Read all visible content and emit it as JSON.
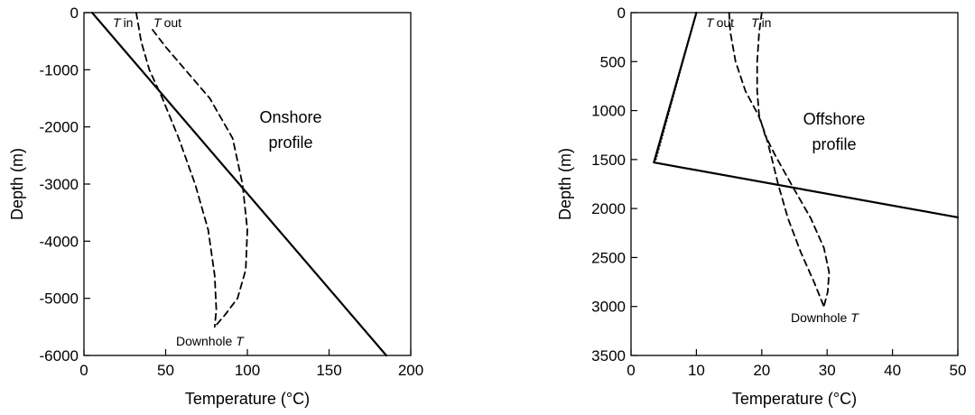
{
  "chart_data": [
    {
      "type": "line",
      "title": "",
      "xlabel": "Temperature (°C)",
      "ylabel": "Depth (m)",
      "xlim": [
        0,
        200
      ],
      "ylim": [
        -6000,
        0
      ],
      "xticks": [
        "0",
        "50",
        "100",
        "150",
        "200"
      ],
      "yticks": [
        "0",
        "-1000",
        "-2000",
        "-3000",
        "-4000",
        "-5000",
        "-6000"
      ],
      "annotations": {
        "profile_line1": "Onshore",
        "profile_line2": "profile",
        "downhole_label": "Downhole",
        "downhole_T": "T",
        "tin_T": "T",
        "tin_label": "in",
        "tout_T": "T",
        "tout_label": "out"
      },
      "series": [
        {
          "style": "solid",
          "x": [
            5,
            185
          ],
          "y": [
            0,
            -6000
          ]
        },
        {
          "style": "dashed",
          "x": [
            32,
            35,
            40,
            48,
            58,
            68,
            76,
            80,
            81,
            80
          ],
          "y": [
            0,
            -500,
            -1000,
            -1500,
            -2200,
            -3000,
            -3800,
            -4600,
            -5200,
            -5500
          ]
        },
        {
          "style": "dashed",
          "x": [
            42,
            50,
            62,
            77,
            91,
            97,
            100,
            99,
            94,
            86,
            80
          ],
          "y": [
            -300,
            -600,
            -1000,
            -1500,
            -2200,
            -3000,
            -3800,
            -4500,
            -5000,
            -5300,
            -5500
          ]
        }
      ]
    },
    {
      "type": "line",
      "title": "",
      "xlabel": "Temperature (°C)",
      "ylabel": "Depth (m)",
      "xlim": [
        0,
        50
      ],
      "ylim": [
        3500,
        0
      ],
      "xticks": [
        "0",
        "10",
        "20",
        "30",
        "40",
        "50"
      ],
      "yticks": [
        "0",
        "500",
        "1000",
        "1500",
        "2000",
        "2500",
        "3000",
        "3500"
      ],
      "annotations": {
        "profile_line1": "Offshore",
        "profile_line2": "profile",
        "downhole_label": "Downhole",
        "downhole_T": "T",
        "tin_T": "T",
        "tin_label": "in",
        "tout_T": "T",
        "tout_label": "out"
      },
      "series": [
        {
          "style": "solid",
          "x": [
            10,
            3.5,
            50
          ],
          "y": [
            0,
            1530,
            2090
          ]
        },
        {
          "style": "dotted",
          "x": [
            10,
            3.8
          ],
          "y": [
            0,
            1500
          ]
        },
        {
          "style": "dashed",
          "x": [
            20,
            19.6,
            19.3,
            19.3,
            19.6,
            20.5,
            22,
            24.5,
            27.5,
            29.5,
            30.3,
            30.1,
            29.5
          ],
          "y": [
            0,
            200,
            500,
            800,
            1050,
            1250,
            1450,
            1750,
            2100,
            2400,
            2650,
            2850,
            3000
          ]
        },
        {
          "style": "dashed",
          "x": [
            15,
            15.2,
            16,
            17.5,
            19.5,
            20.6,
            21.4,
            22.5,
            24,
            26,
            28,
            29.5
          ],
          "y": [
            0,
            200,
            500,
            800,
            1050,
            1250,
            1450,
            1750,
            2100,
            2450,
            2750,
            3000
          ]
        }
      ]
    }
  ]
}
